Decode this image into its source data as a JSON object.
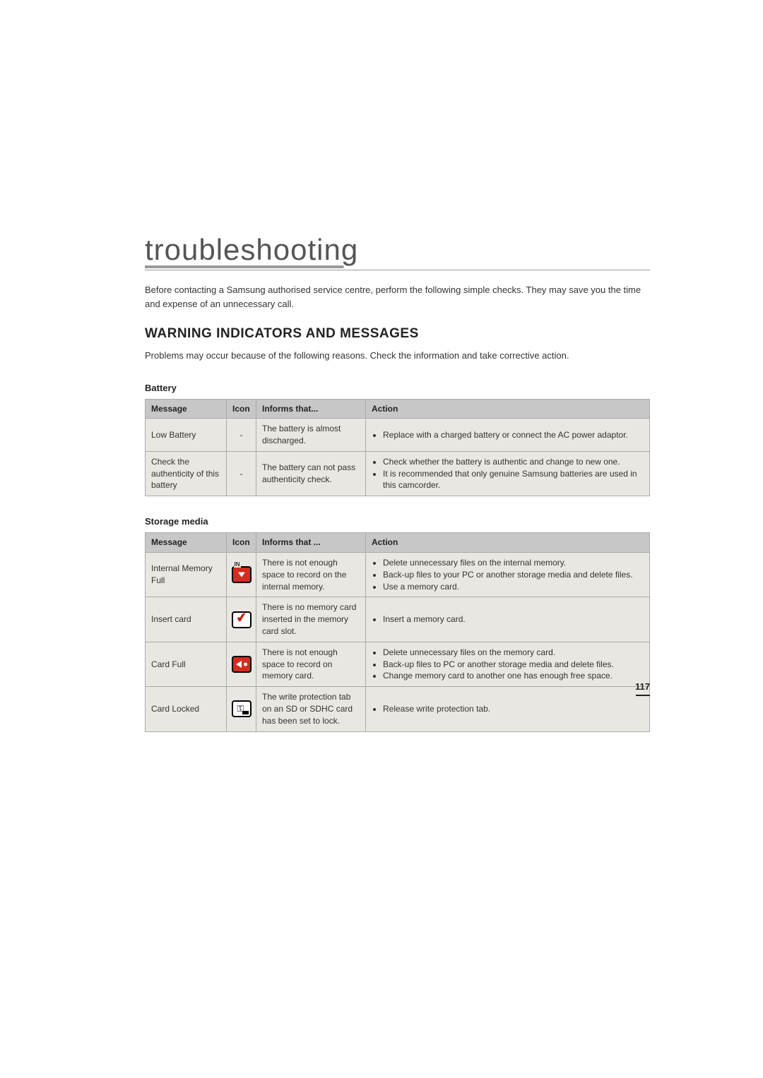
{
  "title": "troubleshooting",
  "intro": "Before contacting a Samsung authorised service centre, perform the following simple checks. They may save you the time and expense of an unnecessary call.",
  "heading": "WARNING INDICATORS AND MESSAGES",
  "section_intro": "Problems may occur because of the following reasons. Check the information and take corrective action.",
  "page_number": "117",
  "columns": {
    "message": "Message",
    "icon": "Icon",
    "informs1": "Informs that...",
    "informs2": "Informs that ...",
    "action": "Action"
  },
  "battery": {
    "subheading": "Battery",
    "rows": [
      {
        "message": "Low Battery",
        "icon": "-",
        "informs": "The battery is almost discharged.",
        "actions": [
          "Replace with a charged battery or connect the AC power adaptor."
        ]
      },
      {
        "message": "Check the authenticity of this battery",
        "icon": "-",
        "informs": "The battery can not pass authenticity check.",
        "actions": [
          "Check whether the battery is authentic and change to new one.",
          "It is recommended that only genuine Samsung batteries are used in this camcorder."
        ]
      }
    ]
  },
  "storage": {
    "subheading": "Storage media",
    "rows": [
      {
        "message": "Internal Memory Full",
        "icon_name": "internal-memory-full-icon",
        "informs": "There is not enough space to record on the internal memory.",
        "actions": [
          "Delete unnecessary files on the internal memory.",
          "Back-up files to your PC or another storage media and delete files.",
          "Use a memory card."
        ]
      },
      {
        "message": "Insert card",
        "icon_name": "insert-card-icon",
        "informs": "There is no memory card inserted in the memory card slot.",
        "actions": [
          "Insert a memory card."
        ]
      },
      {
        "message": "Card Full",
        "icon_name": "card-full-icon",
        "informs": "There is not enough space to record on memory card.",
        "actions": [
          "Delete unnecessary files on the memory card.",
          "Back-up files to PC or another storage media and delete files.",
          "Change memory card to another one has enough free space."
        ]
      },
      {
        "message": "Card Locked",
        "icon_name": "card-locked-icon",
        "informs": "The write protection tab on an SD or SDHC card has been set to lock.",
        "actions": [
          "Release write protection tab."
        ]
      }
    ]
  }
}
